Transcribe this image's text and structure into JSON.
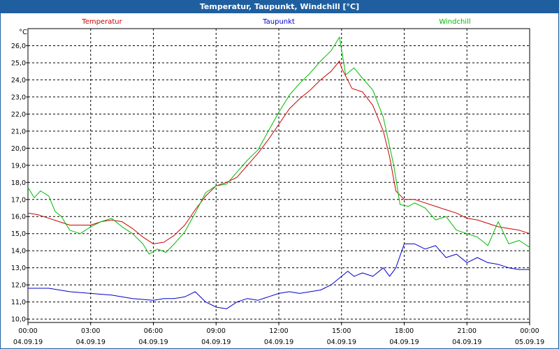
{
  "window": {
    "title": "Temperatur, Taupunkt, Windchill [°C]"
  },
  "chart_data": {
    "type": "line",
    "title": "Temperatur, Taupunkt, Windchill [°C]",
    "ylabel": "°C",
    "ylim": [
      9.8,
      27.0
    ],
    "yticks": [
      "10,0",
      "11,0",
      "12,0",
      "13,0",
      "14,0",
      "15,0",
      "16,0",
      "17,0",
      "18,0",
      "19,0",
      "20,0",
      "21,0",
      "22,0",
      "23,0",
      "24,0",
      "25,0",
      "26,0"
    ],
    "xlim": [
      0,
      24
    ],
    "xticks": [
      {
        "time": "00:00",
        "date": "04.09.19"
      },
      {
        "time": "03:00",
        "date": "04.09.19"
      },
      {
        "time": "06:00",
        "date": "04.09.19"
      },
      {
        "time": "09:00",
        "date": "04.09.19"
      },
      {
        "time": "12:00",
        "date": "04.09.19"
      },
      {
        "time": "15:00",
        "date": "04.09.19"
      },
      {
        "time": "18:00",
        "date": "04.09.19"
      },
      {
        "time": "21:00",
        "date": "04.09.19"
      },
      {
        "time": "00:00",
        "date": "05.09.19"
      }
    ],
    "grid": true,
    "legend_position": "top",
    "series": [
      {
        "name": "Temperatur",
        "color": "#cc0000",
        "points": [
          [
            0,
            16.2
          ],
          [
            0.5,
            16.1
          ],
          [
            1,
            15.9
          ],
          [
            1.5,
            15.7
          ],
          [
            2,
            15.5
          ],
          [
            2.5,
            15.5
          ],
          [
            3,
            15.5
          ],
          [
            3.5,
            15.7
          ],
          [
            4,
            15.8
          ],
          [
            4.5,
            15.7
          ],
          [
            5,
            15.3
          ],
          [
            5.5,
            14.8
          ],
          [
            6,
            14.4
          ],
          [
            6.5,
            14.5
          ],
          [
            7,
            14.9
          ],
          [
            7.5,
            15.5
          ],
          [
            8,
            16.4
          ],
          [
            8.5,
            17.2
          ],
          [
            9,
            17.8
          ],
          [
            9.5,
            18.0
          ],
          [
            10,
            18.3
          ],
          [
            10.5,
            19.0
          ],
          [
            11,
            19.7
          ],
          [
            11.5,
            20.5
          ],
          [
            12,
            21.4
          ],
          [
            12.5,
            22.3
          ],
          [
            13,
            22.9
          ],
          [
            13.5,
            23.4
          ],
          [
            14,
            24.0
          ],
          [
            14.5,
            24.5
          ],
          [
            14.9,
            25.1
          ],
          [
            15,
            24.7
          ],
          [
            15.5,
            23.5
          ],
          [
            16,
            23.3
          ],
          [
            16.5,
            22.5
          ],
          [
            17,
            21.0
          ],
          [
            17.3,
            19.5
          ],
          [
            17.6,
            17.5
          ],
          [
            18,
            17.0
          ],
          [
            18.5,
            17.0
          ],
          [
            19,
            16.8
          ],
          [
            19.5,
            16.6
          ],
          [
            20,
            16.4
          ],
          [
            20.5,
            16.2
          ],
          [
            21,
            15.9
          ],
          [
            21.5,
            15.8
          ],
          [
            22,
            15.6
          ],
          [
            22.5,
            15.4
          ],
          [
            23,
            15.3
          ],
          [
            23.5,
            15.2
          ],
          [
            24,
            15.0
          ]
        ]
      },
      {
        "name": "Taupunkt",
        "color": "#0000cc",
        "points": [
          [
            0,
            11.8
          ],
          [
            1,
            11.8
          ],
          [
            2,
            11.6
          ],
          [
            3,
            11.5
          ],
          [
            4,
            11.4
          ],
          [
            5,
            11.2
          ],
          [
            6,
            11.1
          ],
          [
            6.5,
            11.2
          ],
          [
            7,
            11.2
          ],
          [
            7.5,
            11.3
          ],
          [
            8,
            11.6
          ],
          [
            8.5,
            11.0
          ],
          [
            9,
            10.7
          ],
          [
            9.5,
            10.6
          ],
          [
            10,
            11.0
          ],
          [
            10.5,
            11.2
          ],
          [
            11,
            11.1
          ],
          [
            11.5,
            11.3
          ],
          [
            12,
            11.5
          ],
          [
            12.5,
            11.6
          ],
          [
            13,
            11.5
          ],
          [
            13.5,
            11.6
          ],
          [
            14,
            11.7
          ],
          [
            14.5,
            12.0
          ],
          [
            15,
            12.5
          ],
          [
            15.3,
            12.8
          ],
          [
            15.6,
            12.5
          ],
          [
            16,
            12.7
          ],
          [
            16.5,
            12.5
          ],
          [
            17,
            13.0
          ],
          [
            17.3,
            12.5
          ],
          [
            17.6,
            13.0
          ],
          [
            18,
            14.4
          ],
          [
            18.5,
            14.4
          ],
          [
            19,
            14.1
          ],
          [
            19.5,
            14.3
          ],
          [
            20,
            13.6
          ],
          [
            20.5,
            13.8
          ],
          [
            21,
            13.3
          ],
          [
            21.5,
            13.6
          ],
          [
            22,
            13.3
          ],
          [
            22.5,
            13.2
          ],
          [
            23,
            13.0
          ],
          [
            23.5,
            12.9
          ],
          [
            24,
            12.9
          ]
        ]
      },
      {
        "name": "Windchill",
        "color": "#00bb00",
        "points": [
          [
            0,
            17.7
          ],
          [
            0.3,
            17.1
          ],
          [
            0.6,
            17.5
          ],
          [
            1,
            17.2
          ],
          [
            1.3,
            16.3
          ],
          [
            1.6,
            16.0
          ],
          [
            2,
            15.2
          ],
          [
            2.5,
            15.0
          ],
          [
            3,
            15.4
          ],
          [
            3.5,
            15.7
          ],
          [
            4,
            15.9
          ],
          [
            4.5,
            15.4
          ],
          [
            5,
            15.0
          ],
          [
            5.5,
            14.4
          ],
          [
            5.8,
            13.8
          ],
          [
            6.2,
            14.1
          ],
          [
            6.6,
            13.9
          ],
          [
            7,
            14.4
          ],
          [
            7.5,
            15.1
          ],
          [
            8,
            16.2
          ],
          [
            8.5,
            17.4
          ],
          [
            9,
            17.8
          ],
          [
            9.5,
            17.9
          ],
          [
            10,
            18.6
          ],
          [
            10.5,
            19.3
          ],
          [
            11,
            19.9
          ],
          [
            11.5,
            21.0
          ],
          [
            12,
            22.1
          ],
          [
            12.5,
            23.1
          ],
          [
            13,
            23.8
          ],
          [
            13.5,
            24.4
          ],
          [
            14,
            25.1
          ],
          [
            14.5,
            25.7
          ],
          [
            14.9,
            26.5
          ],
          [
            15.2,
            24.3
          ],
          [
            15.6,
            24.7
          ],
          [
            16,
            24.1
          ],
          [
            16.5,
            23.4
          ],
          [
            17,
            21.8
          ],
          [
            17.5,
            19.0
          ],
          [
            17.8,
            16.7
          ],
          [
            18.2,
            16.6
          ],
          [
            18.5,
            16.8
          ],
          [
            19,
            16.5
          ],
          [
            19.5,
            15.8
          ],
          [
            20,
            16.0
          ],
          [
            20.5,
            15.2
          ],
          [
            21,
            15.0
          ],
          [
            21.5,
            14.8
          ],
          [
            22,
            14.3
          ],
          [
            22.5,
            15.7
          ],
          [
            23,
            14.4
          ],
          [
            23.5,
            14.6
          ],
          [
            24,
            14.2
          ]
        ]
      }
    ]
  }
}
